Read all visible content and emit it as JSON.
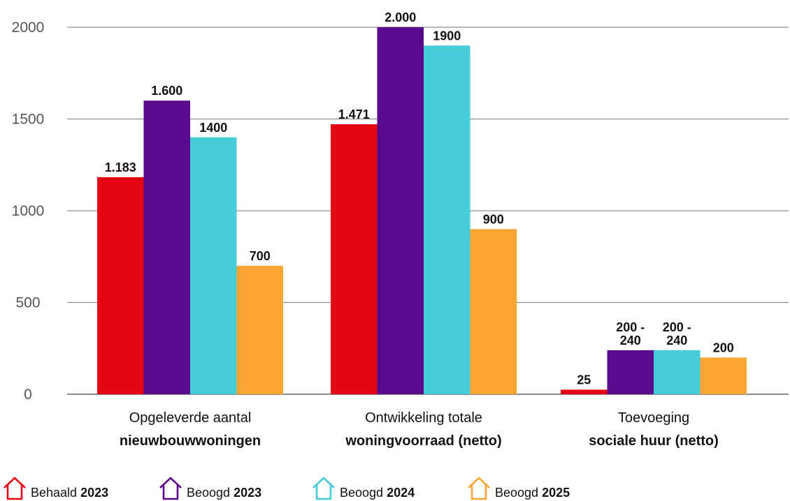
{
  "chart_data": {
    "type": "bar",
    "categories": [
      {
        "line1": "Opgeleverde aantal",
        "line2": "nieuwbouwwoningen"
      },
      {
        "line1": "Ontwikkeling totale",
        "line2": "woningvoorraad (netto)"
      },
      {
        "line1": "Toevoeging",
        "line2": "sociale huur (netto)"
      }
    ],
    "series": [
      {
        "name_prefix": "Behaald",
        "name_year": "2023",
        "color": "#e30613",
        "values": [
          1183,
          1471,
          25
        ],
        "labels": [
          [
            "1.183"
          ],
          [
            "1.471"
          ],
          [
            "25"
          ]
        ]
      },
      {
        "name_prefix": "Beoogd",
        "name_year": "2023",
        "color": "#5a0a8c",
        "values": [
          1600,
          2000,
          240
        ],
        "labels": [
          [
            "1.600"
          ],
          [
            "2.000"
          ],
          [
            "200 -",
            "240"
          ]
        ]
      },
      {
        "name_prefix": "Beoogd",
        "name_year": "2024",
        "color": "#44ccd8",
        "values": [
          1400,
          1900,
          240
        ],
        "labels": [
          [
            "1400"
          ],
          [
            "1900"
          ],
          [
            "200 -",
            "240"
          ]
        ]
      },
      {
        "name_prefix": "Beoogd",
        "name_year": "2025",
        "color": "#fba535",
        "values": [
          700,
          900,
          200
        ],
        "labels": [
          [
            "700"
          ],
          [
            "900"
          ],
          [
            "200"
          ]
        ]
      }
    ],
    "yticks": [
      0,
      500,
      1000,
      1500,
      2000
    ],
    "ylim": [
      0,
      2000
    ],
    "grid": true,
    "legend_position": "bottom-left",
    "title": "",
    "xlabel": "",
    "ylabel": ""
  }
}
